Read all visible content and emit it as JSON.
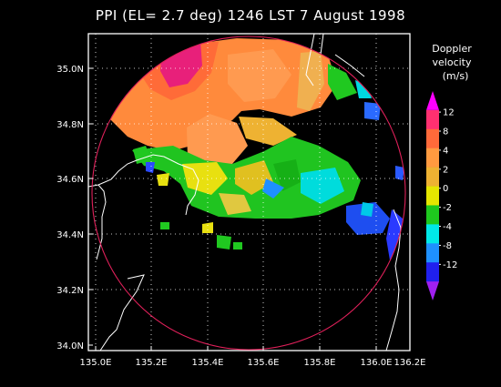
{
  "title": "PPI (EL= 2.7 deg)  1246 LST 7 August 1998",
  "lat_ticks": [
    "35.0N",
    "34.8N",
    "34.6N",
    "34.4N",
    "34.2N",
    "34.0N"
  ],
  "lon_ticks": [
    "135.0E",
    "135.2E",
    "135.4E",
    "135.6E",
    "135.8E",
    "136.0E",
    "136.2E"
  ],
  "legend": {
    "title_lines": [
      "Doppler",
      "velocity",
      "(m/s)"
    ],
    "labels": [
      "12",
      "8",
      "4",
      "2",
      "0",
      "-2",
      "-4",
      "-8",
      "-12"
    ],
    "colors": [
      "#ff00ff",
      "#ff3070",
      "#ff6a3a",
      "#ff9a40",
      "#eeb232",
      "#e5e600",
      "#1ec81e",
      "#00e8e8",
      "#1e90ff",
      "#2020ee",
      "#a020f0"
    ]
  },
  "colors": {
    "background": "#000000",
    "range_ring": "#e0205a",
    "coastline": "#ffffff",
    "grid": "#ffffff"
  }
}
